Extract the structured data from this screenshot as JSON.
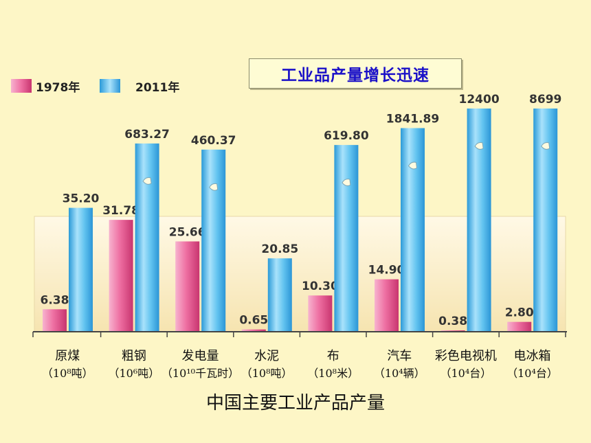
{
  "chart_data": {
    "type": "bar",
    "title": "工业品产量增长迅速",
    "xlabel": "中国主要工业产品产量",
    "legend_position": "top-left",
    "categories": [
      {
        "name": "原煤",
        "unit": "（10⁸吨）"
      },
      {
        "name": "粗钢",
        "unit": "（10⁶吨）"
      },
      {
        "name": "发电量",
        "unit": "（10¹⁰千瓦时）"
      },
      {
        "name": "水泥",
        "unit": "（10⁸吨）"
      },
      {
        "name": "布",
        "unit": "（10⁸米）"
      },
      {
        "name": "汽车",
        "unit": "（10⁴辆）"
      },
      {
        "name": "彩色电视机",
        "unit": "（10⁴台）"
      },
      {
        "name": "电冰箱",
        "unit": "（10⁴台）"
      }
    ],
    "series": [
      {
        "name": "1978年",
        "color": "#e8508a",
        "values": [
          6.38,
          31.78,
          25.66,
          0.65,
          10.3,
          14.9,
          0.38,
          2.8
        ],
        "labels": [
          "6.38",
          "31.78",
          "25.66",
          "0.65",
          "10.30",
          "14.90",
          "0.38",
          "2.80"
        ]
      },
      {
        "name": "2011年",
        "color": "#2fa8e8",
        "values": [
          35.2,
          683.27,
          460.37,
          20.85,
          619.8,
          1841.89,
          12400,
          8699
        ],
        "labels": [
          "35.20",
          "683.27",
          "460.37",
          "20.85",
          "619.80",
          "1841.89",
          "12400",
          "8699"
        ],
        "axis_break": [
          false,
          true,
          true,
          false,
          true,
          true,
          true,
          true
        ]
      }
    ]
  }
}
